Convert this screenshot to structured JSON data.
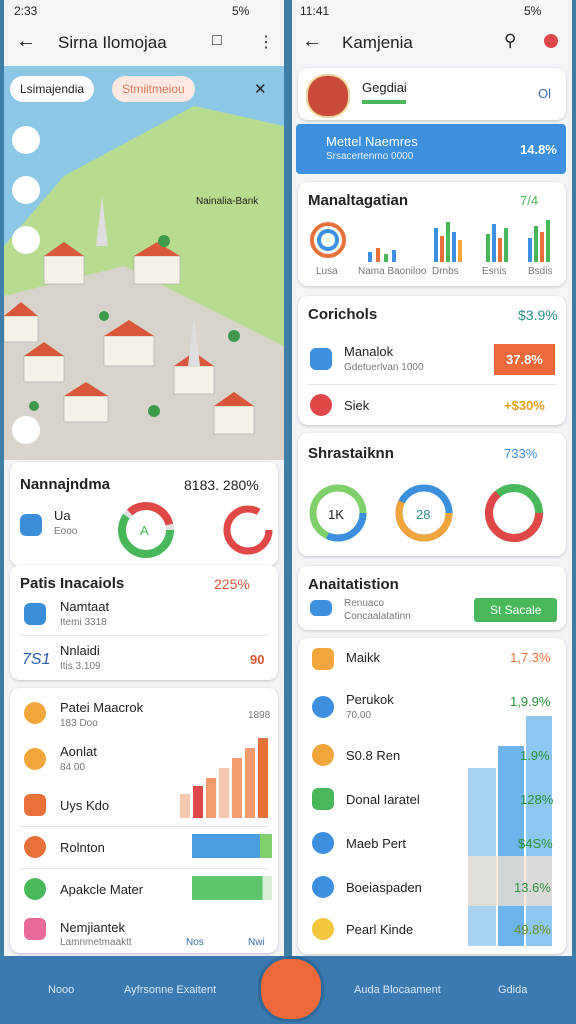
{
  "left": {
    "status": {
      "time": "2:33",
      "battery": "5%"
    },
    "app_bar": {
      "title": "Sirna Ilomojaa"
    },
    "map": {
      "tabs": [
        "Lsimajendia",
        "Stmiitmeiou"
      ],
      "label": "Nainalia-Bank"
    },
    "summary": {
      "title": "Nannajndma",
      "value": "8183. 280%",
      "item": "Ua",
      "sub": "Eooo",
      "donut": "A"
    },
    "partials": {
      "title": "Patis Inacaiols",
      "value": "225%",
      "rows": [
        {
          "name": "Namtaat",
          "sub": "Itemi 3318"
        },
        {
          "badge": "7S1",
          "name": "Nnlaidi",
          "sub": "Itis 3.109",
          "value": "90"
        }
      ]
    },
    "list": {
      "items": [
        {
          "name": "Patei Maacrok",
          "sub": "183 Doo",
          "value": "1898"
        },
        {
          "name": "Aonlat",
          "sub": "84 00"
        },
        {
          "name": "Uys Kdo"
        },
        {
          "name": "Rolnton"
        },
        {
          "name": "Apakcle Mater"
        },
        {
          "name": "Nemjiantek",
          "sub": "Lamnmetmaaktt"
        }
      ],
      "nav": [
        "Nos",
        "Nwi"
      ]
    }
  },
  "right": {
    "status": {
      "time": "11:41",
      "battery": "5%"
    },
    "app_bar": {
      "title": "Kamjenia"
    },
    "profile": {
      "name": "Gegdiai",
      "badge": "Ol"
    },
    "banner": {
      "title": "Mettel Naemres",
      "sub": "Srsacertenmo 0000",
      "value": "14.8%"
    },
    "management": {
      "title": "Manaltagatian",
      "value": "7/4",
      "labels": [
        "Lusa",
        "Nama Baoniloo",
        "Drnbs",
        "Esnis",
        "Bsdis"
      ]
    },
    "controls": {
      "title": "Corichols",
      "value": "$3.9%",
      "rows": [
        {
          "name": "Manalok",
          "sub": "Gdetuerlvan 1000",
          "value": "37.8%"
        },
        {
          "name": "Siek",
          "value": "+$30%"
        }
      ]
    },
    "stats": {
      "title": "Shrastaiknn",
      "value": "733%",
      "donuts": [
        "1K",
        "28"
      ]
    },
    "analytics": {
      "title": "Anaitatistion",
      "line1": "Renuaco",
      "line2": "Concaalatatinn",
      "button": "St Sacale"
    },
    "list": [
      {
        "name": "Maikk",
        "value": "1,7.3%"
      },
      {
        "name": "Perukok",
        "sub": "70.00",
        "value": "1,9.9%"
      },
      {
        "name": "S0.8 Ren",
        "value": "1.9%"
      },
      {
        "name": "Donal Iaratel",
        "value": "128%"
      },
      {
        "name": "Maeb Pert",
        "value": "$4S%"
      },
      {
        "name": "Boeiaspaden",
        "value": "13.6%"
      },
      {
        "name": "Pearl Kinde",
        "value": "49.8%"
      }
    ]
  },
  "bottom_nav": [
    "Nooo",
    "Ayfrsonne Exaitent",
    "Auda Blocaament",
    "Gdida"
  ]
}
